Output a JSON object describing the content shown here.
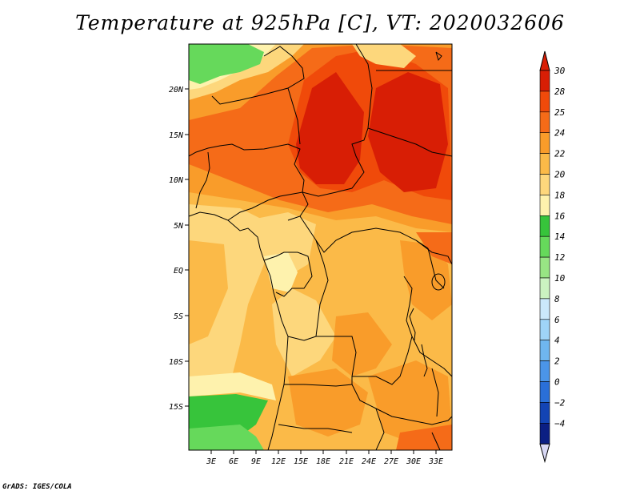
{
  "title": "Temperature at 925hPa [C], VT: 2020032606",
  "credit": "GrADS: IGES/COLA",
  "lat_ticks": [
    "20N",
    "15N",
    "10N",
    "5N",
    "EQ",
    "5S",
    "10S",
    "15S"
  ],
  "lon_ticks": [
    "3E",
    "6E",
    "9E",
    "12E",
    "15E",
    "18E",
    "21E",
    "24E",
    "27E",
    "30E",
    "33E"
  ],
  "colorbar": {
    "labels": [
      "30",
      "28",
      "25",
      "24",
      "22",
      "20",
      "18",
      "16",
      "14",
      "12",
      "10",
      "8",
      "6",
      "4",
      "2",
      "0",
      "−2",
      "−4"
    ],
    "colors": [
      "#d81e05",
      "#f04a0a",
      "#f56b18",
      "#f99c2a",
      "#fbba48",
      "#fdd77c",
      "#fef2ad",
      "#37c43b",
      "#66d95b",
      "#98e584",
      "#cbf3c1",
      "#cbe9fb",
      "#9fd4f7",
      "#6fb6ef",
      "#4b95e8",
      "#2a6fd8",
      "#1344b4",
      "#0b1f83"
    ]
  }
}
